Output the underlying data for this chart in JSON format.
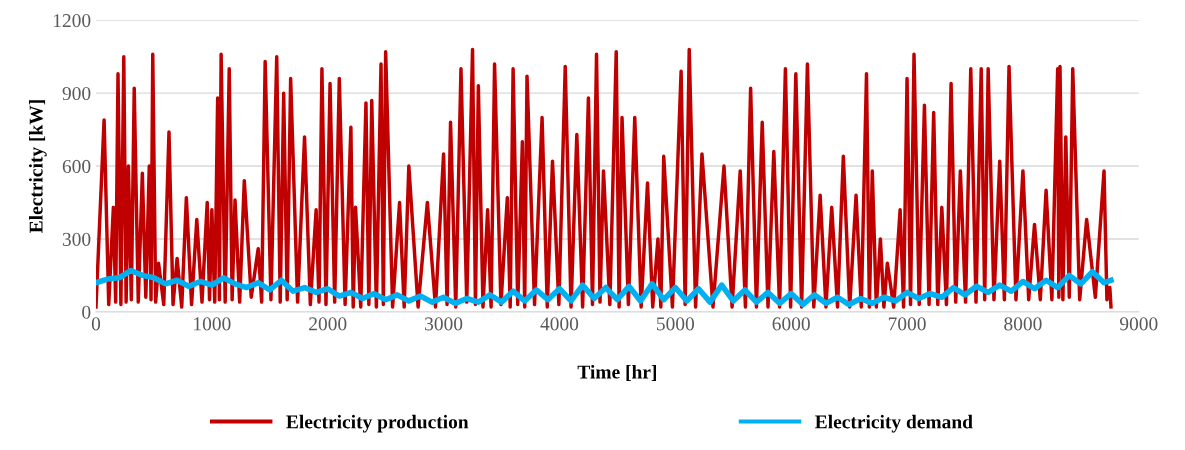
{
  "chart_data": {
    "type": "line",
    "xlabel": "Time [hr]",
    "ylabel": "Electricity [kW]",
    "xlim": [
      0,
      9000
    ],
    "xticks": [
      0,
      1000,
      2000,
      3000,
      4000,
      5000,
      6000,
      7000,
      8000,
      9000
    ],
    "ylim": [
      0,
      1200
    ],
    "yticks": [
      0,
      300,
      600,
      900,
      1200
    ],
    "grid": "y",
    "legend": "bottom",
    "marker": "none",
    "line_style": "solid",
    "series": [
      {
        "name": "Electricity production",
        "color": "#c00000",
        "x": [
          0,
          70,
          110,
          150,
          170,
          190,
          215,
          240,
          260,
          280,
          305,
          330,
          365,
          400,
          430,
          460,
          475,
          490,
          515,
          540,
          585,
          630,
          665,
          700,
          740,
          780,
          825,
          870,
          915,
          960,
          980,
          1000,
          1025,
          1050,
          1065,
          1080,
          1115,
          1150,
          1175,
          1200,
          1240,
          1280,
          1340,
          1400,
          1430,
          1460,
          1510,
          1560,
          1590,
          1620,
          1650,
          1680,
          1740,
          1800,
          1850,
          1900,
          1925,
          1950,
          1985,
          2020,
          2060,
          2100,
          2150,
          2200,
          2220,
          2240,
          2285,
          2330,
          2355,
          2380,
          2420,
          2460,
          2480,
          2500,
          2560,
          2620,
          2660,
          2700,
          2780,
          2860,
          2930,
          3000,
          3030,
          3060,
          3105,
          3150,
          3200,
          3250,
          3275,
          3300,
          3340,
          3380,
          3410,
          3440,
          3495,
          3550,
          3575,
          3600,
          3640,
          3680,
          3700,
          3720,
          3785,
          3850,
          3895,
          3940,
          3995,
          4050,
          4100,
          4150,
          4200,
          4250,
          4285,
          4320,
          4350,
          4380,
          4435,
          4490,
          4515,
          4540,
          4595,
          4650,
          4705,
          4760,
          4805,
          4850,
          4875,
          4900,
          4975,
          5050,
          5085,
          5120,
          5175,
          5230,
          5325,
          5420,
          5490,
          5560,
          5605,
          5650,
          5700,
          5750,
          5800,
          5850,
          5900,
          5950,
          5995,
          6040,
          6090,
          6140,
          6195,
          6250,
          6300,
          6350,
          6400,
          6450,
          6505,
          6560,
          6605,
          6650,
          6675,
          6700,
          6735,
          6770,
          6800,
          6830,
          6885,
          6940,
          6970,
          7000,
          7030,
          7060,
          7105,
          7150,
          7190,
          7230,
          7265,
          7300,
          7340,
          7380,
          7420,
          7460,
          7505,
          7550,
          7595,
          7640,
          7670,
          7700,
          7750,
          7800,
          7840,
          7880,
          7940,
          8000,
          8050,
          8100,
          8150,
          8200,
          8250,
          8300,
          8310,
          8320,
          8345,
          8370,
          8400,
          8430,
          8490,
          8550,
          8625,
          8700,
          8725,
          8750,
          8760
        ],
        "values": [
          20,
          790,
          30,
          430,
          40,
          980,
          30,
          1050,
          40,
          600,
          50,
          920,
          40,
          570,
          60,
          600,
          50,
          1060,
          40,
          200,
          30,
          740,
          30,
          220,
          20,
          470,
          30,
          380,
          40,
          450,
          50,
          420,
          40,
          880,
          50,
          1060,
          40,
          1000,
          50,
          460,
          40,
          540,
          60,
          260,
          40,
          1030,
          50,
          1050,
          40,
          900,
          50,
          960,
          40,
          720,
          30,
          420,
          40,
          1000,
          30,
          940,
          40,
          960,
          30,
          760,
          20,
          430,
          20,
          860,
          30,
          870,
          20,
          1020,
          30,
          1070,
          20,
          450,
          20,
          600,
          20,
          450,
          20,
          650,
          30,
          780,
          20,
          1000,
          40,
          1080,
          30,
          930,
          20,
          420,
          20,
          1020,
          30,
          470,
          20,
          1000,
          30,
          700,
          20,
          970,
          30,
          800,
          20,
          620,
          30,
          1010,
          20,
          730,
          20,
          880,
          30,
          1060,
          40,
          580,
          30,
          1070,
          20,
          800,
          30,
          800,
          20,
          530,
          20,
          300,
          20,
          640,
          20,
          990,
          30,
          1080,
          20,
          650,
          20,
          600,
          20,
          580,
          20,
          920,
          20,
          780,
          20,
          660,
          20,
          1000,
          20,
          980,
          20,
          1020,
          20,
          480,
          20,
          430,
          20,
          640,
          20,
          480,
          20,
          980,
          20,
          580,
          20,
          300,
          20,
          200,
          20,
          420,
          20,
          960,
          30,
          1060,
          30,
          850,
          30,
          820,
          30,
          430,
          30,
          940,
          40,
          580,
          40,
          1000,
          40,
          1000,
          50,
          1000,
          50,
          620,
          50,
          1010,
          50,
          580,
          50,
          360,
          50,
          500,
          50,
          1000,
          60,
          1010,
          50,
          720,
          60,
          1000,
          50,
          380,
          60,
          580,
          50,
          100,
          20
        ]
      },
      {
        "name": "Electricity demand",
        "color": "#00b0f0",
        "x": [
          0,
          100,
          200,
          300,
          400,
          500,
          600,
          700,
          800,
          900,
          1000,
          1100,
          1200,
          1300,
          1400,
          1500,
          1600,
          1700,
          1800,
          1900,
          2000,
          2100,
          2200,
          2300,
          2400,
          2500,
          2600,
          2700,
          2800,
          2900,
          3000,
          3100,
          3200,
          3300,
          3400,
          3500,
          3600,
          3700,
          3800,
          3900,
          4000,
          4100,
          4200,
          4300,
          4400,
          4500,
          4600,
          4700,
          4800,
          4900,
          5000,
          5100,
          5200,
          5300,
          5400,
          5500,
          5600,
          5700,
          5800,
          5900,
          6000,
          6100,
          6200,
          6300,
          6400,
          6500,
          6600,
          6700,
          6800,
          6900,
          7000,
          7100,
          7200,
          7300,
          7400,
          7500,
          7600,
          7700,
          7800,
          7900,
          8000,
          8100,
          8200,
          8300,
          8400,
          8500,
          8600,
          8700,
          8760
        ],
        "values": [
          120,
          135,
          140,
          170,
          150,
          140,
          115,
          130,
          105,
          125,
          110,
          140,
          115,
          100,
          120,
          90,
          130,
          85,
          100,
          80,
          95,
          65,
          80,
          55,
          75,
          50,
          70,
          45,
          65,
          40,
          60,
          35,
          55,
          40,
          70,
          40,
          85,
          45,
          90,
          50,
          95,
          45,
          110,
          55,
          100,
          50,
          105,
          45,
          115,
          50,
          100,
          45,
          95,
          40,
          110,
          45,
          90,
          40,
          80,
          35,
          75,
          30,
          70,
          35,
          60,
          30,
          55,
          35,
          60,
          45,
          80,
          55,
          75,
          60,
          100,
          70,
          105,
          80,
          110,
          85,
          125,
          95,
          130,
          100,
          150,
          115,
          165,
          120,
          130
        ]
      }
    ]
  }
}
